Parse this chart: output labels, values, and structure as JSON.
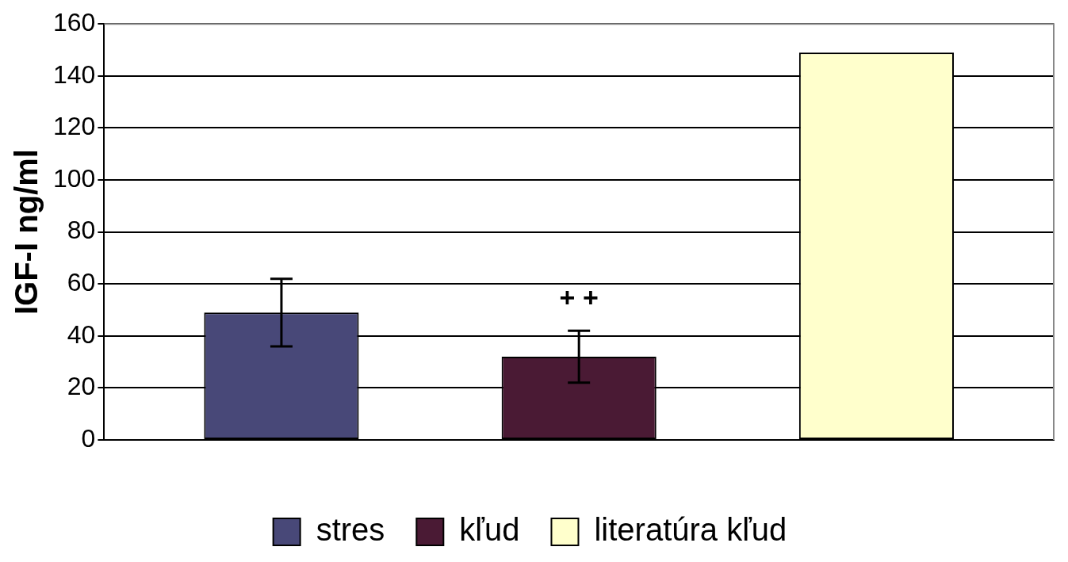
{
  "chart_data": {
    "type": "bar",
    "ylabel": "IGF-I ng/ml",
    "categories": [
      null
    ],
    "series": [
      {
        "name": "stres",
        "color": "#484878",
        "values": [
          49
        ],
        "errors": [
          13
        ]
      },
      {
        "name": "kľud",
        "color": "#4a1a34",
        "values": [
          32
        ],
        "errors": [
          10
        ]
      },
      {
        "name": "literatúra kľud",
        "color": "#ffffcc",
        "values": [
          149
        ]
      }
    ],
    "annotations": [
      "+ +"
    ],
    "ylim": [
      0,
      160
    ],
    "yticks": [
      0,
      20,
      40,
      60,
      80,
      100,
      120,
      140,
      160
    ],
    "grid": "y",
    "legend": "bottom"
  }
}
